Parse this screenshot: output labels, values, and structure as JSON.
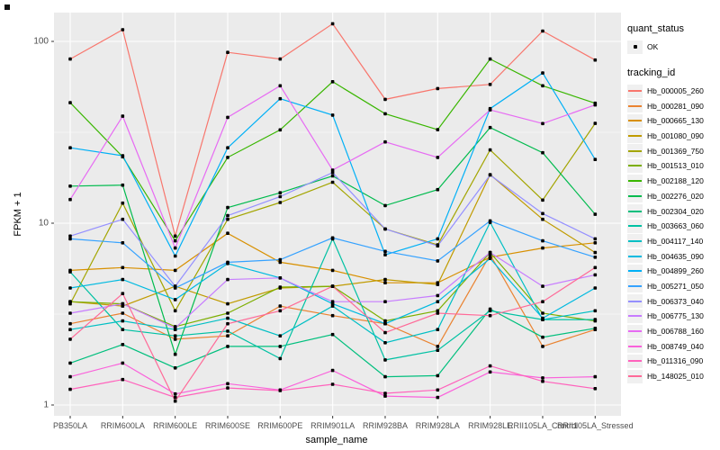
{
  "figure": {
    "y_axis_title": "FPKM + 1",
    "x_axis_title": "sample_name"
  },
  "legend": {
    "quant_status_title": "quant_status",
    "quant_status_ok_label": "OK",
    "tracking_id_title": "tracking_id"
  },
  "chart_data": {
    "type": "line",
    "title": "",
    "xlabel": "sample_name",
    "ylabel": "FPKM + 1",
    "y_scale": "log10",
    "y_major_ticks": [
      1,
      10,
      100
    ],
    "y_minor_ticks": [
      3.162,
      31.62
    ],
    "ylim": [
      1,
      144
    ],
    "grid": "white-on-gray",
    "legend_position": "right",
    "point_marker": "black-dot-OK",
    "categories": [
      "PB350LA",
      "RRIM600LA",
      "RRIM600LE",
      "RRIM600SE",
      "RRIM600PE",
      "RRIM901LA",
      "RRIM928BA",
      "RRIM928LA",
      "RRIM928LE",
      "RRII105LA_Control",
      "RRII105LA_Stressed"
    ],
    "series": [
      {
        "name": "Hb_000005_260",
        "color": "#F8766D",
        "values": [
          80,
          116,
          8.5,
          87,
          80,
          125,
          48,
          55,
          58,
          114,
          79
        ]
      },
      {
        "name": "Hb_000281_090",
        "color": "#EA8331",
        "values": [
          2.8,
          3.2,
          2.3,
          2.4,
          3.5,
          3.1,
          2.8,
          2.1,
          6.7,
          2.1,
          2.6
        ]
      },
      {
        "name": "Hb_000665_130",
        "color": "#D89000",
        "values": [
          5.5,
          5.7,
          5.5,
          8.8,
          6.1,
          5.5,
          4.7,
          4.7,
          6.5,
          7.3,
          7.8
        ]
      },
      {
        "name": "Hb_001080_090",
        "color": "#C09B00",
        "values": [
          3.7,
          3.5,
          4.5,
          3.6,
          4.4,
          4.5,
          4.9,
          4.6,
          18.5,
          10.5,
          6.9
        ]
      },
      {
        "name": "Hb_001369_750",
        "color": "#A3A500",
        "values": [
          3.6,
          12.9,
          3.3,
          10.5,
          13,
          16.8,
          9.3,
          7.6,
          25.3,
          13.4,
          35.4
        ]
      },
      {
        "name": "Hb_001513_010",
        "color": "#7CAE00",
        "values": [
          3.7,
          3.6,
          2.7,
          3.2,
          4.45,
          4.5,
          2.9,
          3.3,
          6.9,
          3.2,
          2.9
        ]
      },
      {
        "name": "Hb_002188_120",
        "color": "#39B600",
        "values": [
          46,
          23.2,
          8,
          23,
          32.6,
          60,
          40,
          32.7,
          80,
          57,
          45.7
        ]
      },
      {
        "name": "Hb_002276_020",
        "color": "#00BB4E",
        "values": [
          16,
          16.2,
          1.9,
          12.2,
          14.7,
          18.2,
          12.5,
          15.3,
          33.6,
          24.4,
          11.2
        ]
      },
      {
        "name": "Hb_002304_020",
        "color": "#00BF7D",
        "values": [
          1.7,
          2.15,
          1.6,
          2.1,
          2.1,
          2.44,
          1.43,
          1.45,
          3.37,
          2.36,
          2.64
        ]
      },
      {
        "name": "Hb_003663_060",
        "color": "#00C1A3",
        "values": [
          5.4,
          2.6,
          2.4,
          2.55,
          1.8,
          8.2,
          1.77,
          2.0,
          3.3,
          2.95,
          2.95
        ]
      },
      {
        "name": "Hb_004117_140",
        "color": "#00BFC4",
        "values": [
          2.6,
          2.9,
          2.6,
          3.0,
          2.4,
          3.5,
          2.2,
          2.6,
          10.1,
          2.95,
          3.3
        ]
      },
      {
        "name": "Hb_004635_090",
        "color": "#00BAE0",
        "values": [
          4.4,
          4.9,
          3.8,
          6.0,
          5.0,
          3.6,
          2.8,
          3.7,
          6.4,
          3.0,
          4.4
        ]
      },
      {
        "name": "Hb_004899_260",
        "color": "#00B0F6",
        "values": [
          26,
          23.5,
          6.6,
          26,
          48.4,
          39.3,
          6.7,
          8.2,
          42.7,
          67,
          22.4
        ]
      },
      {
        "name": "Hb_005271_050",
        "color": "#35A2FF",
        "values": [
          8.2,
          7.8,
          4.4,
          6.1,
          6.3,
          8.3,
          7.0,
          6.2,
          10.3,
          8.0,
          6.5
        ]
      },
      {
        "name": "Hb_006373_040",
        "color": "#9590FF",
        "values": [
          8.5,
          10.5,
          4.5,
          11,
          14,
          19,
          9.3,
          7.5,
          18.4,
          11.3,
          8.2
        ]
      },
      {
        "name": "Hb_006775_130",
        "color": "#C77CFF",
        "values": [
          3.2,
          3.6,
          2.65,
          4.9,
          5.0,
          3.7,
          3.7,
          4.0,
          6.9,
          4.5,
          5.2
        ]
      },
      {
        "name": "Hb_006788_160",
        "color": "#E76BF3",
        "values": [
          13.5,
          38.8,
          7.3,
          38.2,
          57,
          19.6,
          28,
          23,
          42,
          35.3,
          44.7
        ]
      },
      {
        "name": "Hb_008749_040",
        "color": "#FA62DB",
        "values": [
          1.43,
          1.7,
          1.15,
          1.31,
          1.21,
          1.55,
          1.12,
          1.1,
          1.52,
          1.41,
          1.43
        ]
      },
      {
        "name": "Hb_011316_090",
        "color": "#FF62BC",
        "values": [
          1.22,
          1.38,
          1.1,
          1.24,
          1.2,
          1.3,
          1.16,
          1.21,
          1.64,
          1.35,
          1.23
        ]
      },
      {
        "name": "Hb_148025_010",
        "color": "#FF6A98",
        "values": [
          2.3,
          4.1,
          1.05,
          2.8,
          3.3,
          4.5,
          2.5,
          3.2,
          3.1,
          3.7,
          5.7
        ]
      }
    ]
  }
}
